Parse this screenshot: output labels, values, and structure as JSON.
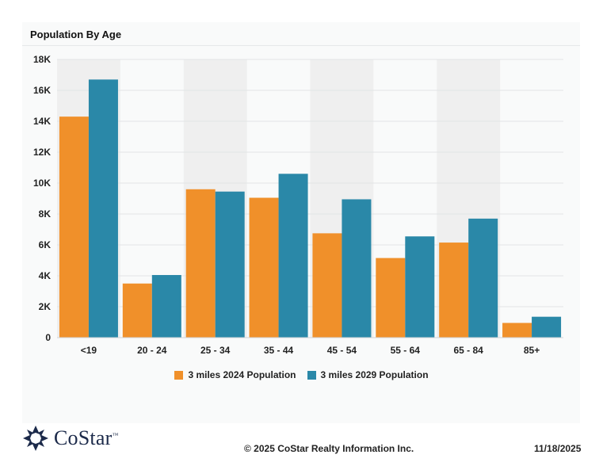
{
  "title": "Population By Age",
  "footer": {
    "brand": "CoStar",
    "trademark": "™",
    "copyright": "© 2025 CoStar Realty Information Inc.",
    "date": "11/18/2025"
  },
  "colors": {
    "series_2024": "#f0902a",
    "series_2029": "#2a88a8",
    "band": "#efefef",
    "brand_navy": "#1c2a4a"
  },
  "chart_data": {
    "type": "bar",
    "title": "Population By Age",
    "categories": [
      "<19",
      "20 - 24",
      "25 - 34",
      "35 - 44",
      "45 - 54",
      "55 - 64",
      "65 - 84",
      "85+"
    ],
    "series": [
      {
        "name": "3 miles 2024 Population",
        "values": [
          14300,
          3500,
          9600,
          9050,
          6750,
          5150,
          6150,
          950
        ]
      },
      {
        "name": "3 miles 2029 Population",
        "values": [
          16700,
          4050,
          9450,
          10600,
          8950,
          6550,
          7700,
          1350
        ]
      }
    ],
    "ylim": [
      0,
      18000
    ],
    "yticks": [
      0,
      2000,
      4000,
      6000,
      8000,
      10000,
      12000,
      14000,
      16000,
      18000
    ],
    "ytick_labels": [
      "0",
      "2K",
      "4K",
      "6K",
      "8K",
      "10K",
      "12K",
      "14K",
      "16K",
      "18K"
    ],
    "grid": true,
    "legend_position": "bottom-center"
  }
}
